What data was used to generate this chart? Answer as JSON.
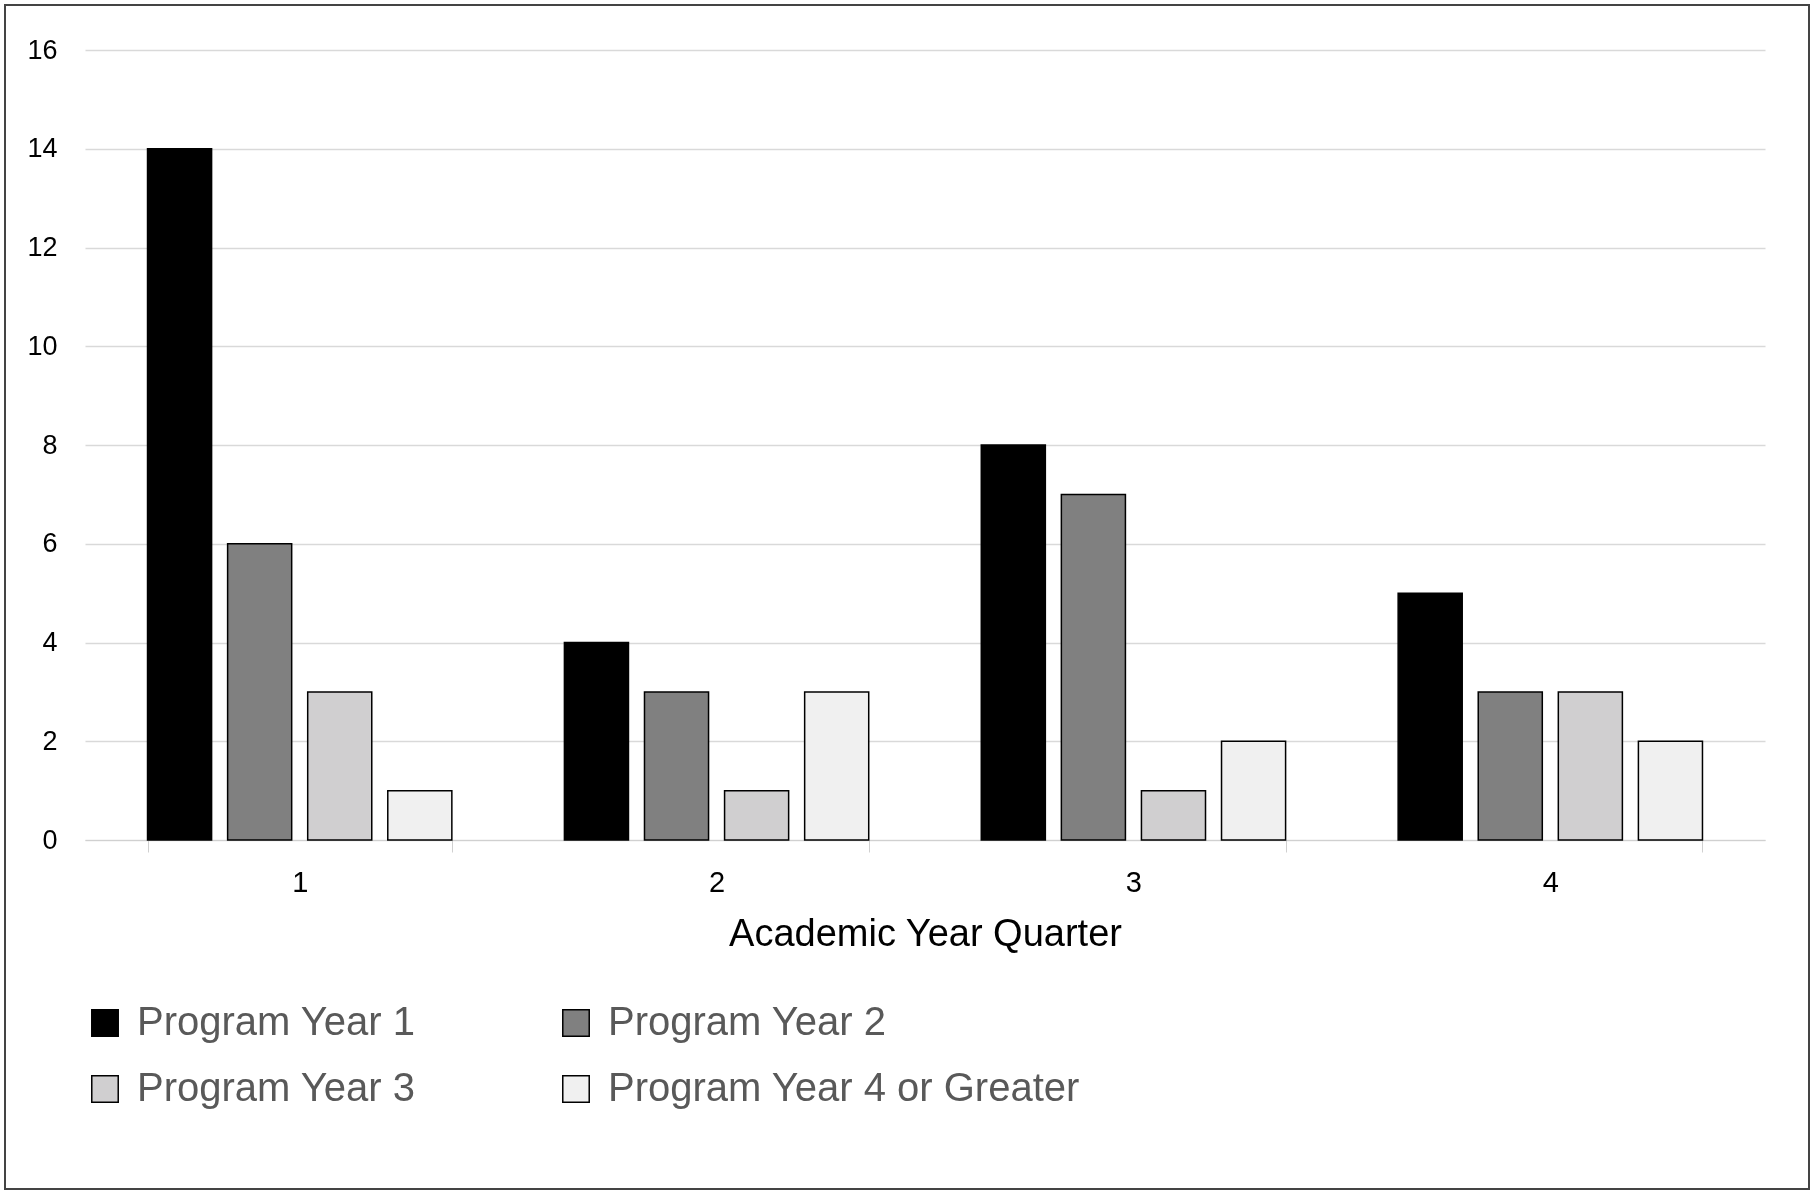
{
  "chart_data": {
    "type": "bar",
    "xlabel": "Academic Year Quarter",
    "categories": [
      "1",
      "2",
      "3",
      "4"
    ],
    "series": [
      {
        "name": "Program Year 1",
        "color": "#000000",
        "values": [
          14,
          4,
          8,
          5
        ]
      },
      {
        "name": "Program Year 2",
        "color": "#808080",
        "values": [
          6,
          3,
          7,
          3
        ]
      },
      {
        "name": "Program Year 3",
        "color": "#d0cfd0",
        "values": [
          3,
          1,
          1,
          3
        ]
      },
      {
        "name": "Program Year 4 or Greater",
        "color": "#f0f0f0",
        "values": [
          1,
          3,
          2,
          2
        ]
      }
    ],
    "ylim": [
      0,
      16
    ],
    "yticks": [
      0,
      2,
      4,
      6,
      8,
      10,
      12,
      14,
      16
    ],
    "grid": "y",
    "legend": "bottom"
  }
}
